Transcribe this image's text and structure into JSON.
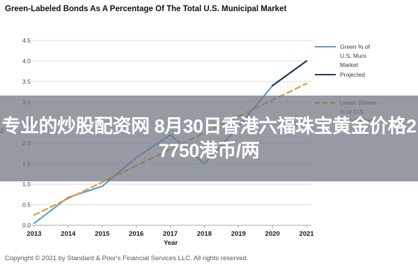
{
  "title": "Green-Labeled Bonds As A Percentage Of The Total U.S. Municipal Market",
  "overlay_banner": {
    "line1": "专业的炒股配资网 8月30日香港六福珠宝黄金价格2",
    "line2": "7750港币/两",
    "background": "rgba(110,117,128,0.72)",
    "text_color": "#ffffff"
  },
  "chart_data": {
    "type": "line",
    "title": "Green-Labeled Bonds As A Percentage Of The Total U.S. Municipal Market",
    "xlabel": "Year",
    "ylabel": "%",
    "x_ticks": [
      "2013",
      "2014",
      "2015",
      "2016",
      "2017",
      "2018",
      "2019",
      "2020",
      "2021"
    ],
    "y_ticks": [
      "0.0",
      "0.5",
      "1.0",
      "1.5",
      "2.0",
      "2.5",
      "3.0",
      "3.5",
      "4.0",
      "4.5"
    ],
    "ylim": [
      0,
      4.5
    ],
    "grid": true,
    "legend_position": "right",
    "series": [
      {
        "name": "Green % of U.S. Muni Market",
        "color": "#5aa0cd",
        "style": "solid",
        "x": [
          2013,
          2014,
          2015,
          2016,
          2017,
          2018,
          2019,
          2020
        ],
        "values": [
          0.05,
          0.68,
          0.95,
          1.65,
          2.2,
          1.5,
          2.4,
          3.4
        ]
      },
      {
        "name": "Projected",
        "color": "#17375e",
        "style": "solid",
        "x": [
          2020,
          2021
        ],
        "values": [
          3.4,
          4.0
        ]
      },
      {
        "name": "Linear (Green % of U.S. Muni Market)",
        "color": "#e2a23c",
        "style": "dashed",
        "x": [
          2013,
          2021
        ],
        "values": [
          0.25,
          3.45
        ]
      }
    ]
  },
  "legend": {
    "entries": [
      {
        "lines": [
          "Green % of",
          "U.S. Muni",
          "Market"
        ],
        "color": "#5aa0cd",
        "style": "solid"
      },
      {
        "lines": [
          "Projected"
        ],
        "color": "#17375e",
        "style": "solid"
      },
      {
        "lines": [
          "Linear (Green",
          "% of U.S.",
          "Muni Market)"
        ],
        "color": "#e2a23c",
        "style": "dashed"
      }
    ]
  },
  "footer": {
    "copyright": "Copyright © 2021 by Standard & Poor's Financial Services LLC. All rights reserved."
  }
}
